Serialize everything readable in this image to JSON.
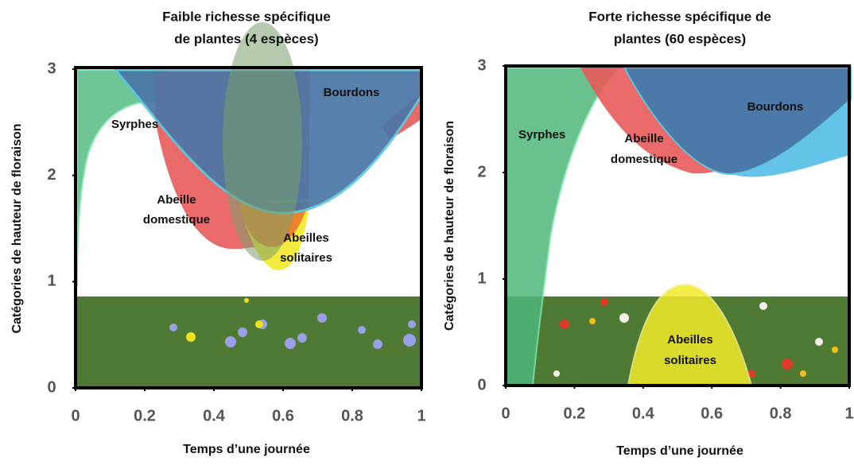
{
  "panels": [
    {
      "title": [
        "Faible richesse spécifique",
        "de plantes (4 espèces)"
      ],
      "xlabel": "Temps d’une journée",
      "ylabel": "Catégories de hauteur de floraison",
      "xlim": [
        0,
        1
      ],
      "ylim": [
        0,
        3
      ],
      "xticks": [
        0,
        0.2,
        0.4,
        0.6,
        0.8,
        1
      ],
      "yticks": [
        0,
        1,
        2,
        3
      ],
      "regions": [
        "Syrphes",
        "Bourdons",
        "Abeille",
        "domestique",
        "Abeilles",
        "solitaires"
      ]
    },
    {
      "title": [
        "Forte richesse spécifique de",
        "plantes (60 espèces)"
      ],
      "xlabel": "Temps d’une journée",
      "ylabel": "Catégories de hauteur de floraison",
      "xlim": [
        0,
        1
      ],
      "ylim": [
        0,
        3
      ],
      "xticks": [
        0,
        0.2,
        0.4,
        0.6,
        0.8,
        1
      ],
      "yticks": [
        0,
        1,
        2,
        3
      ],
      "regions": [
        "Syrphes",
        "Bourdons",
        "Abeille",
        "domestique",
        "Abeilles",
        "solitaires"
      ]
    }
  ]
}
